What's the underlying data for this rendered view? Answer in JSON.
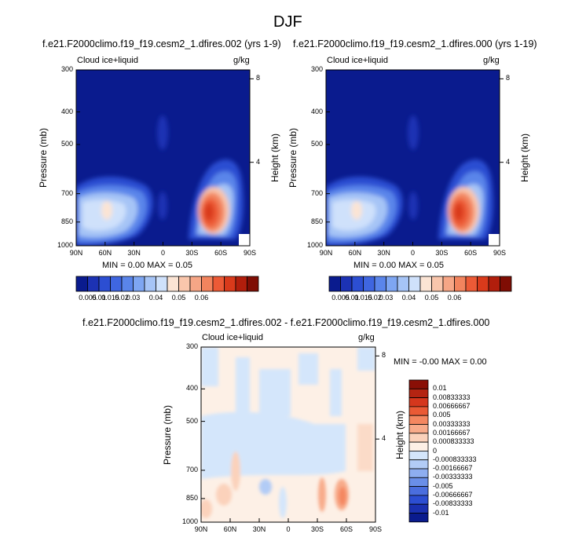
{
  "page_title": "DJF",
  "panels": [
    {
      "case_title": "f.e21.F2000climo.f19_f19.cesm2_1.dfires.002 (yrs 1-9)",
      "left_label": "Cloud ice+liquid",
      "right_label": "g/kg",
      "ylabel": "Pressure (mb)",
      "y2label": "Height (km)",
      "minmax": "MIN =   0.00   MAX =   0.05"
    },
    {
      "case_title": "f.e21.F2000climo.f19_f19.cesm2_1.dfires.000 (yrs 1-19)",
      "left_label": "Cloud ice+liquid",
      "right_label": "g/kg",
      "ylabel": "Pressure (mb)",
      "y2label": "Height (km)",
      "minmax": "MIN =   0.00   MAX =   0.05"
    },
    {
      "case_title": "f.e21.F2000climo.f19_f19.cesm2_1.dfires.002 - f.e21.F2000climo.f19_f19.cesm2_1.dfires.000",
      "left_label": "Cloud ice+liquid",
      "right_label": "g/kg",
      "ylabel": "Pressure (mb)",
      "y2label": "Height (km)",
      "minmax": "MIN =  -0.00   MAX =   0.00"
    }
  ],
  "chart_data": [
    {
      "type": "heatmap",
      "title": "f.e21.F2000climo.f19_f19.cesm2_1.dfires.002 (yrs 1-9)",
      "variable": "Cloud ice+liquid",
      "units": "g/kg",
      "xlabel": "",
      "ylabel": "Pressure (mb)",
      "y2label": "Height (km)",
      "x_ticks": [
        "90N",
        "60N",
        "30N",
        "0",
        "30S",
        "60S",
        "90S"
      ],
      "x_range": [
        90,
        -90
      ],
      "y_ticks": [
        300,
        400,
        500,
        700,
        850,
        1000
      ],
      "y_range": [
        300,
        1000
      ],
      "y_scale": "log",
      "y2_ticks": [
        8,
        4
      ],
      "min": 0.0,
      "max": 0.05,
      "colorbar_labels": [
        "0.005",
        "0.01",
        "0.015",
        "0.02",
        "0.03",
        "0.04",
        "0.05",
        "0.06"
      ],
      "features": [
        {
          "lat": 85,
          "p": 850,
          "value": 0.025
        },
        {
          "lat": 55,
          "p": 850,
          "value": 0.03
        },
        {
          "lat": 35,
          "p": 830,
          "value": 0.02
        },
        {
          "lat": 0,
          "p": 550,
          "value": 0.01
        },
        {
          "lat": -45,
          "p": 860,
          "value": 0.05
        },
        {
          "lat": -65,
          "p": 800,
          "value": 0.02
        }
      ]
    },
    {
      "type": "heatmap",
      "title": "f.e21.F2000climo.f19_f19.cesm2_1.dfires.000 (yrs 1-19)",
      "variable": "Cloud ice+liquid",
      "units": "g/kg",
      "xlabel": "",
      "ylabel": "Pressure (mb)",
      "y2label": "Height (km)",
      "x_ticks": [
        "90N",
        "60N",
        "30N",
        "0",
        "30S",
        "60S",
        "90S"
      ],
      "x_range": [
        90,
        -90
      ],
      "y_ticks": [
        300,
        400,
        500,
        700,
        850,
        1000
      ],
      "y_range": [
        300,
        1000
      ],
      "y_scale": "log",
      "y2_ticks": [
        8,
        4
      ],
      "min": 0.0,
      "max": 0.05,
      "colorbar_labels": [
        "0.005",
        "0.01",
        "0.015",
        "0.02",
        "0.03",
        "0.04",
        "0.05",
        "0.06"
      ],
      "features": [
        {
          "lat": 85,
          "p": 850,
          "value": 0.025
        },
        {
          "lat": 55,
          "p": 850,
          "value": 0.03
        },
        {
          "lat": 35,
          "p": 830,
          "value": 0.02
        },
        {
          "lat": 0,
          "p": 550,
          "value": 0.01
        },
        {
          "lat": -45,
          "p": 860,
          "value": 0.05
        },
        {
          "lat": -65,
          "p": 800,
          "value": 0.02
        }
      ]
    },
    {
      "type": "heatmap",
      "title": "f.e21.F2000climo.f19_f19.cesm2_1.dfires.002 - f.e21.F2000climo.f19_f19.cesm2_1.dfires.000",
      "variable": "Cloud ice+liquid",
      "units": "g/kg",
      "xlabel": "",
      "ylabel": "Pressure (mb)",
      "y2label": "Height (km)",
      "x_ticks": [
        "90N",
        "60N",
        "30N",
        "0",
        "30S",
        "60S",
        "90S"
      ],
      "x_range": [
        90,
        -90
      ],
      "y_ticks": [
        300,
        400,
        500,
        700,
        850,
        1000
      ],
      "y_range": [
        300,
        1000
      ],
      "y_scale": "log",
      "y2_ticks": [
        8,
        4
      ],
      "min": -0.0,
      "max": 0.0,
      "colorbar_labels": [
        "0.01",
        "0.00833333",
        "0.00666667",
        "0.005",
        "0.00333333",
        "0.00166667",
        "0.000833333",
        "0",
        "-0.000833333",
        "-0.00166667",
        "-0.00333333",
        "-0.005",
        "-0.00666667",
        "-0.00833333",
        "-0.01"
      ],
      "features": [
        {
          "lat": -55,
          "p": 870,
          "value": 0.004
        },
        {
          "lat": 85,
          "p": 900,
          "value": 0.002
        },
        {
          "lat": 30,
          "p": 770,
          "value": -0.001
        },
        {
          "lat": 10,
          "p": 850,
          "value": -0.002
        }
      ]
    }
  ],
  "colors": {
    "abs_scale": [
      "#0a1b8e",
      "#1c32b4",
      "#2c4ed2",
      "#3f66e0",
      "#5a85ea",
      "#7ea6f2",
      "#a6c4f6",
      "#cfe1fb",
      "#fbe4d4",
      "#f9c6ac",
      "#f6a686",
      "#f2845e",
      "#ec5a36",
      "#d93a1b",
      "#b11e0c",
      "#7f0d04"
    ],
    "diff_scale": [
      "#8a0f06",
      "#b42412",
      "#d5371d",
      "#ea5a35",
      "#f48760",
      "#f8ab8a",
      "#fbd2bb",
      "#fdf0e6",
      "#d4e6fb",
      "#b2ccf6",
      "#8eaef0",
      "#6a8fe8",
      "#4a6ede",
      "#2c4ed2",
      "#1a30b0",
      "#0a1b8e"
    ],
    "background": "#0a1b8e"
  }
}
